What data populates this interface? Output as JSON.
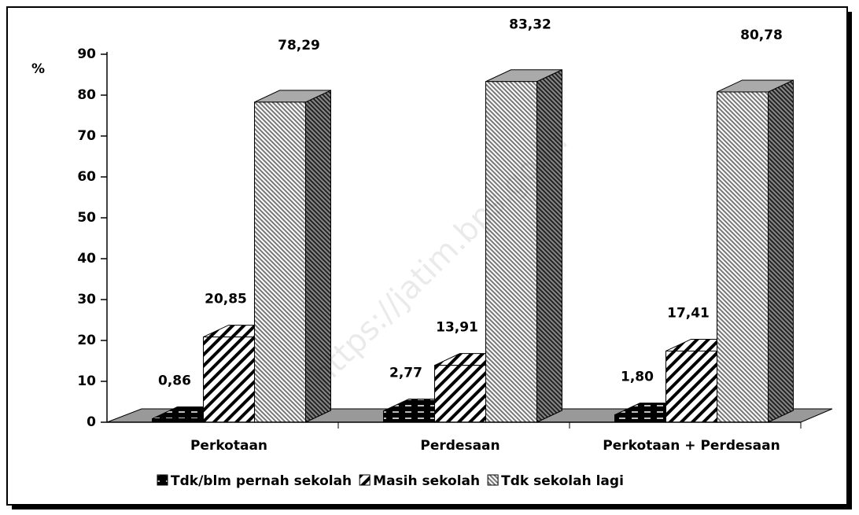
{
  "chart_data": {
    "type": "bar3d",
    "y_label": "%",
    "watermark": "https://jatim.bps.go.id",
    "categories": [
      "Perkotaan",
      "Perdesaan",
      "Perkotaan + Perdesaan"
    ],
    "series": [
      {
        "name": "Tdk/blm pernah sekolah",
        "color": "#000000",
        "values": [
          0.86,
          2.77,
          1.8
        ],
        "value_labels": [
          "0,86",
          "2,77",
          "1,80"
        ]
      },
      {
        "name": "Masih sekolah",
        "color": "#ffffff",
        "values": [
          20.85,
          13.91,
          17.41
        ],
        "value_labels": [
          "20,85",
          "13,91",
          "17,41"
        ]
      },
      {
        "name": "Tdk sekolah lagi",
        "color": "#9a9a9a",
        "values": [
          78.29,
          83.32,
          80.78
        ],
        "value_labels": [
          "78,29",
          "83,32",
          "80,78"
        ]
      }
    ],
    "ylim": [
      0,
      90
    ],
    "yticks": [
      0,
      10,
      20,
      30,
      40,
      50,
      60,
      70,
      80,
      90
    ]
  }
}
